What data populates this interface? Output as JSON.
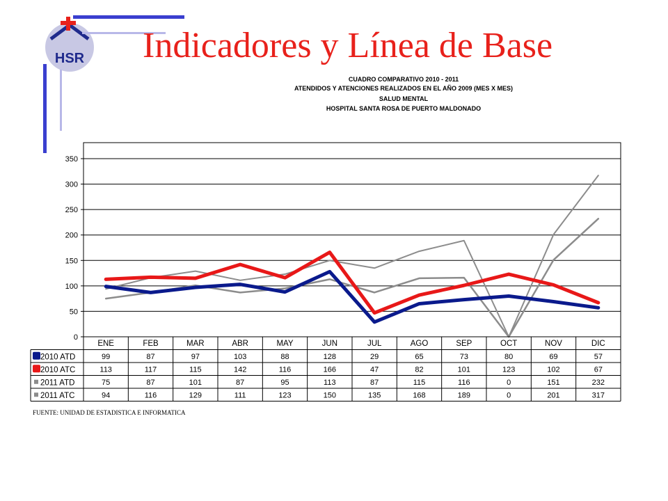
{
  "slide": {
    "title": "Indicadores y Línea de Base",
    "logo_text": "HSR",
    "colors": {
      "title": "#e8211b",
      "logo_red": "#e8211b",
      "logo_blue": "#1f2a8c",
      "bars": "#3a3fcf"
    }
  },
  "chart_headings": [
    "CUADRO COMPARATIVO 2010 - 2011",
    "ATENDIDOS Y ATENCIONES  REALIZADOS EN  EL AÑO 2009 (MES X MES)",
    "SALUD MENTAL",
    "HOSPITAL SANTA ROSA DE PUERTO MALDONADO"
  ],
  "source_note": "FUENTE: UNIDAD DE ESTADISTICA E INFORMATICA",
  "chart_data": {
    "type": "line",
    "categories": [
      "ENE",
      "FEB",
      "MAR",
      "ABR",
      "MAY",
      "JUN",
      "JUL",
      "AGO",
      "SEP",
      "OCT",
      "NOV",
      "DIC"
    ],
    "ylim": [
      0,
      350
    ],
    "yticks": [
      0,
      50,
      100,
      150,
      200,
      250,
      300,
      350
    ],
    "grid": true,
    "legend": "data-table-below",
    "series": [
      {
        "name": "2010 ATD",
        "color": "#0a1a8c",
        "values": [
          99,
          87,
          97,
          103,
          88,
          128,
          29,
          65,
          73,
          80,
          69,
          57
        ]
      },
      {
        "name": "2010 ATC",
        "color": "#e81818",
        "values": [
          113,
          117,
          115,
          142,
          116,
          166,
          47,
          82,
          101,
          123,
          102,
          67
        ]
      },
      {
        "name": "2011 ATD",
        "color": "#8c8c8c",
        "values": [
          75,
          87,
          101,
          87,
          95,
          113,
          87,
          115,
          116,
          0,
          151,
          232
        ]
      },
      {
        "name": "2011 ATC",
        "color": "#8c8c8c",
        "values": [
          94,
          116,
          129,
          111,
          123,
          150,
          135,
          168,
          189,
          0,
          201,
          317
        ]
      }
    ]
  }
}
